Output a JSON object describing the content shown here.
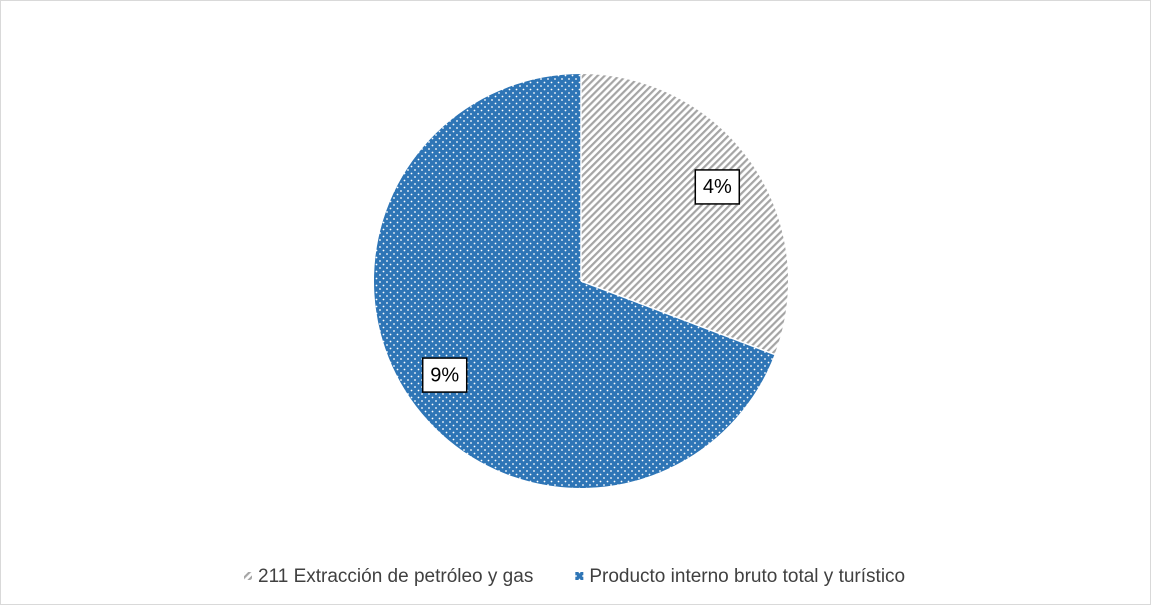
{
  "chart_data": {
    "type": "pie",
    "categories": [
      "211 Extracción de petróleo y gas",
      "Producto interno bruto total y turístico"
    ],
    "values": [
      4,
      9
    ],
    "value_labels": [
      "4%",
      "9%"
    ],
    "colors": [
      "#a5a5a5",
      "#2e75b6"
    ],
    "legend": "bottom"
  }
}
